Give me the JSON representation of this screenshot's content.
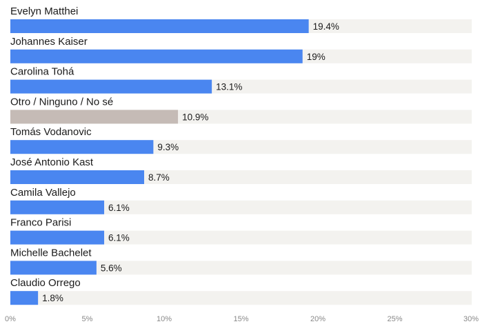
{
  "chart_data": {
    "type": "bar",
    "orientation": "horizontal",
    "title": "",
    "xlabel": "",
    "ylabel": "",
    "categories": [
      "Evelyn Matthei",
      "Johannes Kaiser",
      "Carolina Tohá",
      "Otro / Ninguno / No sé",
      "Tomás Vodanovic",
      "José Antonio Kast",
      "Camila Vallejo",
      "Franco Parisi",
      "Michelle Bachelet",
      "Claudio Orrego"
    ],
    "values": [
      19.4,
      19,
      13.1,
      10.9,
      9.3,
      8.7,
      6.1,
      6.1,
      5.6,
      1.8
    ],
    "value_labels": [
      "19.4%",
      "19%",
      "13.1%",
      "10.9%",
      "9.3%",
      "8.7%",
      "6.1%",
      "6.1%",
      "5.6%",
      "1.8%"
    ],
    "bar_colors": [
      "#4a86f0",
      "#4a86f0",
      "#4a86f0",
      "#c5bbb6",
      "#4a86f0",
      "#4a86f0",
      "#4a86f0",
      "#4a86f0",
      "#4a86f0",
      "#4a86f0"
    ],
    "track_color": "#f3f2ef",
    "xlim": [
      0,
      30
    ],
    "x_ticks": [
      0,
      5,
      10,
      15,
      20,
      25,
      30
    ],
    "x_tick_labels": [
      "0%",
      "5%",
      "10%",
      "15%",
      "20%",
      "25%",
      "30%"
    ],
    "grid": false,
    "legend": "none"
  }
}
